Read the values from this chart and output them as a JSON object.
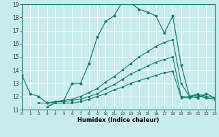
{
  "xlabel": "Humidex (Indice chaleur)",
  "bg_color": "#c8ecec",
  "grid_color": "#ffffff",
  "line_color": "#1a7a6e",
  "xmin": 0,
  "xmax": 23,
  "ymin": 11,
  "ymax": 19,
  "yticks": [
    11,
    12,
    13,
    14,
    15,
    16,
    17,
    18,
    19
  ],
  "xticks": [
    0,
    1,
    2,
    3,
    4,
    5,
    6,
    7,
    8,
    9,
    10,
    11,
    12,
    13,
    14,
    15,
    16,
    17,
    18,
    19,
    20,
    21,
    22,
    23
  ],
  "line1_x": [
    0,
    1,
    2,
    3,
    5,
    6,
    7,
    8,
    9,
    10,
    11,
    12,
    13,
    14,
    15,
    16,
    17,
    18,
    19,
    20,
    21,
    22,
    23
  ],
  "line1_y": [
    13.6,
    12.2,
    12.0,
    11.5,
    11.7,
    13.0,
    13.0,
    14.5,
    16.5,
    17.7,
    18.1,
    19.2,
    19.1,
    18.6,
    18.4,
    18.1,
    16.8,
    18.1,
    14.4,
    12.0,
    11.9,
    12.2,
    11.9
  ],
  "line2_x": [
    2,
    3,
    4,
    5,
    6,
    7,
    8,
    9,
    10,
    11,
    12,
    13,
    14,
    15,
    16,
    17,
    18,
    19,
    20,
    21,
    22,
    23
  ],
  "line2_y": [
    11.5,
    11.5,
    11.6,
    11.7,
    11.8,
    12.0,
    12.3,
    12.6,
    13.1,
    13.5,
    14.0,
    14.5,
    15.0,
    15.4,
    15.8,
    16.1,
    16.3,
    13.0,
    12.0,
    12.2,
    12.0,
    11.9
  ],
  "line3_x": [
    3,
    4,
    5,
    6,
    7,
    8,
    9,
    10,
    11,
    12,
    13,
    14,
    15,
    16,
    17,
    18,
    19,
    20,
    21,
    22,
    23
  ],
  "line3_y": [
    11.2,
    11.6,
    11.6,
    11.7,
    11.8,
    12.0,
    12.2,
    12.6,
    12.9,
    13.3,
    13.7,
    14.0,
    14.3,
    14.6,
    14.8,
    15.0,
    12.0,
    12.0,
    12.1,
    11.9,
    11.8
  ],
  "line4_x": [
    3,
    4,
    5,
    6,
    7,
    8,
    9,
    10,
    11,
    12,
    13,
    14,
    15,
    16,
    17,
    18,
    19,
    20,
    21,
    22,
    23
  ],
  "line4_y": [
    11.2,
    11.5,
    11.5,
    11.5,
    11.6,
    11.8,
    12.0,
    12.2,
    12.5,
    12.7,
    13.0,
    13.2,
    13.4,
    13.6,
    13.8,
    13.9,
    11.9,
    11.9,
    12.0,
    11.9,
    11.8
  ]
}
